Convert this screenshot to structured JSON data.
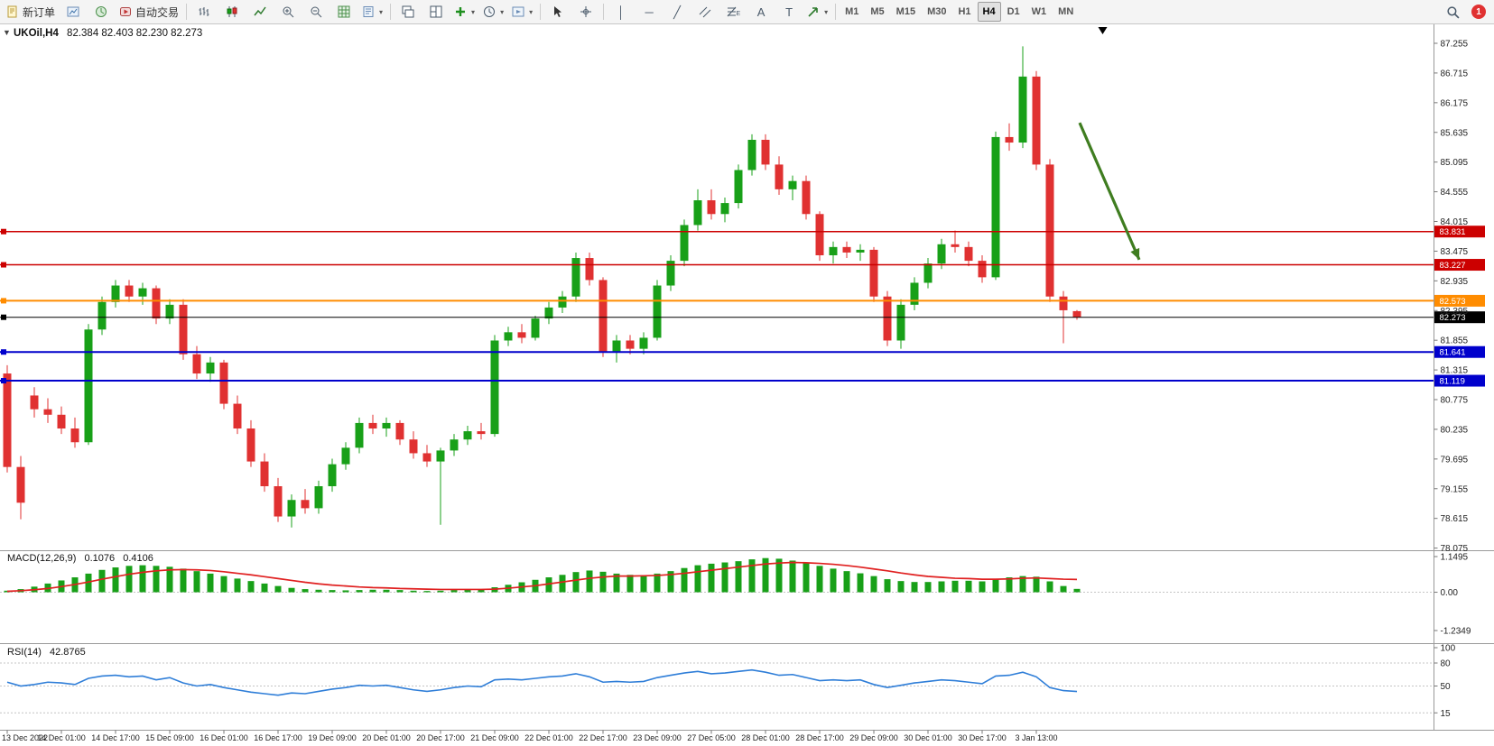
{
  "toolbar": {
    "new_order_label": "新订单",
    "auto_trading_label": "自动交易",
    "timeframes": [
      "M1",
      "M5",
      "M15",
      "M30",
      "H1",
      "H4",
      "D1",
      "W1",
      "MN"
    ],
    "active_timeframe": "H4",
    "notification_count": "1",
    "drawing_tools": {
      "vertical_line": "│",
      "horizontal_line": "─",
      "trendline": "╱",
      "text": "A",
      "label": "T"
    }
  },
  "chart": {
    "symbol_title": "UKOil,H4",
    "ohlc_text": "82.384 82.403 82.230 82.273",
    "one_click_arrow": "▼"
  },
  "chart_data": {
    "type": "candlestick",
    "symbol": "UKOil",
    "timeframe": "H4",
    "ohlc_current": {
      "open": 82.384,
      "high": 82.403,
      "low": 82.23,
      "close": 82.273
    },
    "colors": {
      "up": "#18a018",
      "down": "#e03131",
      "macd_histogram": "#18a018",
      "macd_signal": "#e02020",
      "rsi_line": "#2f7ed8",
      "level_line": "#c4c4c4",
      "arrow": "#3f7d20",
      "axis_text": "#222222"
    },
    "price_axis_ticks": [
      87.255,
      86.715,
      86.175,
      85.635,
      85.095,
      84.555,
      84.015,
      83.475,
      82.935,
      82.395,
      81.855,
      81.315,
      80.775,
      80.235,
      79.695,
      79.155,
      78.615,
      78.075
    ],
    "x_labels": [
      "13 Dec 2022",
      "14 Dec 01:00",
      "14 Dec 17:00",
      "15 Dec 09:00",
      "16 Dec 01:00",
      "16 Dec 17:00",
      "19 Dec 09:00",
      "20 Dec 01:00",
      "20 Dec 17:00",
      "21 Dec 09:00",
      "22 Dec 01:00",
      "22 Dec 17:00",
      "23 Dec 09:00",
      "27 Dec 05:00",
      "28 Dec 01:00",
      "28 Dec 17:00",
      "29 Dec 09:00",
      "30 Dec 01:00",
      "30 Dec 17:00",
      "3 Jan 13:00"
    ],
    "label_every_n_candles": 4,
    "candles": [
      [
        81.25,
        81.4,
        79.45,
        79.55
      ],
      [
        79.55,
        79.75,
        78.6,
        78.9
      ],
      [
        80.85,
        81.0,
        80.45,
        80.6
      ],
      [
        80.6,
        80.8,
        80.35,
        80.5
      ],
      [
        80.5,
        80.65,
        80.15,
        80.25
      ],
      [
        80.25,
        80.45,
        79.9,
        80.0
      ],
      [
        80.0,
        82.15,
        79.95,
        82.05
      ],
      [
        82.05,
        82.65,
        81.95,
        82.55
      ],
      [
        82.55,
        82.95,
        82.45,
        82.85
      ],
      [
        82.85,
        82.95,
        82.55,
        82.65
      ],
      [
        82.65,
        82.9,
        82.5,
        82.8
      ],
      [
        82.8,
        82.85,
        82.15,
        82.25
      ],
      [
        82.25,
        82.6,
        82.15,
        82.5
      ],
      [
        82.5,
        82.6,
        81.5,
        81.6
      ],
      [
        81.6,
        81.75,
        81.15,
        81.25
      ],
      [
        81.25,
        81.55,
        81.1,
        81.45
      ],
      [
        81.45,
        81.5,
        80.6,
        80.7
      ],
      [
        80.7,
        80.85,
        80.15,
        80.25
      ],
      [
        80.25,
        80.4,
        79.55,
        79.65
      ],
      [
        79.65,
        79.8,
        79.1,
        79.2
      ],
      [
        79.2,
        79.35,
        78.55,
        78.65
      ],
      [
        78.65,
        79.05,
        78.45,
        78.95
      ],
      [
        78.95,
        79.15,
        78.7,
        78.8
      ],
      [
        78.8,
        79.3,
        78.7,
        79.2
      ],
      [
        79.2,
        79.7,
        79.1,
        79.6
      ],
      [
        79.6,
        80.0,
        79.5,
        79.9
      ],
      [
        79.9,
        80.45,
        79.8,
        80.35
      ],
      [
        80.35,
        80.5,
        80.15,
        80.25
      ],
      [
        80.25,
        80.45,
        80.1,
        80.35
      ],
      [
        80.35,
        80.4,
        79.95,
        80.05
      ],
      [
        80.05,
        80.2,
        79.7,
        79.8
      ],
      [
        79.8,
        79.95,
        79.55,
        79.65
      ],
      [
        79.65,
        79.9,
        78.5,
        79.85
      ],
      [
        79.85,
        80.15,
        79.75,
        80.05
      ],
      [
        80.05,
        80.3,
        79.95,
        80.2
      ],
      [
        80.2,
        80.35,
        80.05,
        80.15
      ],
      [
        80.15,
        81.95,
        80.1,
        81.85
      ],
      [
        81.85,
        82.1,
        81.75,
        82.0
      ],
      [
        82.0,
        82.15,
        81.8,
        81.9
      ],
      [
        81.9,
        82.3,
        81.85,
        82.25
      ],
      [
        82.25,
        82.55,
        82.15,
        82.45
      ],
      [
        82.45,
        82.75,
        82.35,
        82.65
      ],
      [
        82.65,
        83.45,
        82.55,
        83.35
      ],
      [
        83.35,
        83.45,
        82.85,
        82.95
      ],
      [
        82.95,
        83.0,
        81.55,
        81.65
      ],
      [
        81.65,
        81.95,
        81.45,
        81.85
      ],
      [
        81.85,
        81.95,
        81.6,
        81.7
      ],
      [
        81.7,
        82.0,
        81.6,
        81.9
      ],
      [
        81.9,
        82.95,
        81.85,
        82.85
      ],
      [
        82.85,
        83.4,
        82.75,
        83.3
      ],
      [
        83.3,
        84.05,
        83.2,
        83.95
      ],
      [
        83.95,
        84.6,
        83.85,
        84.4
      ],
      [
        84.4,
        84.6,
        84.05,
        84.15
      ],
      [
        84.15,
        84.45,
        84.0,
        84.35
      ],
      [
        84.35,
        85.05,
        84.25,
        84.95
      ],
      [
        84.95,
        85.6,
        84.85,
        85.5
      ],
      [
        85.5,
        85.6,
        84.95,
        85.05
      ],
      [
        85.05,
        85.2,
        84.5,
        84.6
      ],
      [
        84.6,
        84.85,
        84.4,
        84.75
      ],
      [
        84.75,
        84.85,
        84.05,
        84.15
      ],
      [
        84.15,
        84.2,
        83.3,
        83.4
      ],
      [
        83.4,
        83.65,
        83.25,
        83.55
      ],
      [
        83.55,
        83.65,
        83.35,
        83.45
      ],
      [
        83.45,
        83.6,
        83.3,
        83.5
      ],
      [
        83.5,
        83.55,
        82.55,
        82.65
      ],
      [
        82.65,
        82.75,
        81.75,
        81.85
      ],
      [
        81.85,
        82.6,
        81.7,
        82.5
      ],
      [
        82.5,
        83.0,
        82.4,
        82.9
      ],
      [
        82.9,
        83.35,
        82.8,
        83.25
      ],
      [
        83.25,
        83.7,
        83.15,
        83.6
      ],
      [
        83.6,
        83.85,
        83.45,
        83.55
      ],
      [
        83.55,
        83.65,
        83.2,
        83.3
      ],
      [
        83.3,
        83.4,
        82.9,
        83.0
      ],
      [
        83.0,
        85.65,
        82.95,
        85.55
      ],
      [
        85.55,
        85.8,
        85.3,
        85.45
      ],
      [
        85.45,
        87.2,
        85.35,
        86.65
      ],
      [
        86.65,
        86.75,
        84.95,
        85.05
      ],
      [
        85.05,
        85.15,
        82.55,
        82.65
      ],
      [
        82.65,
        82.75,
        81.8,
        82.4
      ],
      [
        82.384,
        82.403,
        82.23,
        82.273
      ]
    ],
    "horizontal_lines": [
      {
        "price": 83.831,
        "badge": "83.831",
        "color": "#cc0000",
        "width": 1.5
      },
      {
        "price": 83.227,
        "badge": "83.227",
        "color": "#cc0000",
        "width": 1.5
      },
      {
        "price": 82.573,
        "badge": "82.573",
        "color": "#ff8c00",
        "width": 2
      },
      {
        "price": 81.641,
        "badge": "81.641",
        "color": "#0000cc",
        "width": 2
      },
      {
        "price": 81.119,
        "badge": "81.119",
        "color": "#0000cc",
        "width": 2
      },
      {
        "price": 82.273,
        "badge": "82.273",
        "color": "#000000",
        "width": 1,
        "role": "current-price"
      }
    ],
    "annotation_arrow": {
      "start": {
        "index": 79.2,
        "price": 85.81
      },
      "end": {
        "index": 83.6,
        "price": 83.32
      },
      "color": "#3f7d20"
    },
    "top_marker": {
      "index": 80.9
    },
    "macd": {
      "label": "MACD(12,26,9)",
      "value_main": "0.1076",
      "value_signal": "0.4106",
      "ylim": [
        -1.2349,
        1.1495
      ],
      "axis_ticks": [
        {
          "v": 1.1495,
          "label": "1.1495"
        },
        {
          "v": 0,
          "label": "0.00"
        },
        {
          "v": -1.2349,
          "label": "-1.2349"
        }
      ],
      "histogram": [
        0.05,
        0.1,
        0.18,
        0.28,
        0.38,
        0.48,
        0.6,
        0.72,
        0.8,
        0.85,
        0.87,
        0.85,
        0.82,
        0.76,
        0.68,
        0.6,
        0.52,
        0.44,
        0.36,
        0.28,
        0.2,
        0.14,
        0.1,
        0.08,
        0.07,
        0.06,
        0.07,
        0.08,
        0.08,
        0.07,
        0.05,
        0.04,
        0.05,
        0.07,
        0.09,
        0.1,
        0.16,
        0.24,
        0.32,
        0.4,
        0.48,
        0.56,
        0.65,
        0.7,
        0.66,
        0.6,
        0.56,
        0.55,
        0.6,
        0.68,
        0.78,
        0.87,
        0.92,
        0.96,
        1.0,
        1.06,
        1.1,
        1.08,
        1.02,
        0.94,
        0.85,
        0.76,
        0.68,
        0.61,
        0.52,
        0.42,
        0.36,
        0.33,
        0.33,
        0.35,
        0.37,
        0.37,
        0.35,
        0.42,
        0.48,
        0.52,
        0.5,
        0.35,
        0.2,
        0.1076
      ],
      "signal": [
        0.03,
        0.05,
        0.08,
        0.12,
        0.18,
        0.25,
        0.33,
        0.42,
        0.5,
        0.58,
        0.64,
        0.69,
        0.72,
        0.73,
        0.72,
        0.7,
        0.66,
        0.61,
        0.56,
        0.5,
        0.44,
        0.38,
        0.32,
        0.27,
        0.23,
        0.2,
        0.17,
        0.15,
        0.14,
        0.12,
        0.11,
        0.1,
        0.09,
        0.09,
        0.09,
        0.09,
        0.1,
        0.13,
        0.17,
        0.21,
        0.27,
        0.33,
        0.39,
        0.45,
        0.49,
        0.52,
        0.52,
        0.53,
        0.54,
        0.57,
        0.61,
        0.66,
        0.71,
        0.76,
        0.81,
        0.86,
        0.91,
        0.94,
        0.96,
        0.95,
        0.93,
        0.9,
        0.86,
        0.81,
        0.75,
        0.69,
        0.62,
        0.56,
        0.51,
        0.48,
        0.45,
        0.44,
        0.42,
        0.42,
        0.43,
        0.45,
        0.46,
        0.44,
        0.42,
        0.4106
      ]
    },
    "rsi": {
      "label": "RSI(14)",
      "value_text": "42.8765",
      "ylim": [
        0,
        100
      ],
      "axis_ticks": [
        {
          "v": 100,
          "label": "100"
        },
        {
          "v": 80,
          "label": "80"
        },
        {
          "v": 50,
          "label": "50"
        },
        {
          "v": 15,
          "label": "15"
        }
      ],
      "levels": [
        80,
        50,
        15
      ],
      "values": [
        55,
        50,
        52,
        55,
        54,
        52,
        60,
        63,
        64,
        62,
        63,
        58,
        61,
        54,
        50,
        52,
        48,
        45,
        42,
        40,
        38,
        41,
        40,
        43,
        46,
        48,
        51,
        50,
        51,
        48,
        45,
        43,
        45,
        48,
        50,
        49,
        58,
        59,
        58,
        60,
        62,
        63,
        66,
        62,
        55,
        56,
        55,
        56,
        61,
        64,
        67,
        69,
        66,
        67,
        69,
        71,
        68,
        64,
        65,
        61,
        57,
        58,
        57,
        58,
        52,
        48,
        51,
        54,
        56,
        58,
        57,
        55,
        53,
        63,
        64,
        68,
        62,
        48,
        44,
        42.8765
      ]
    }
  }
}
